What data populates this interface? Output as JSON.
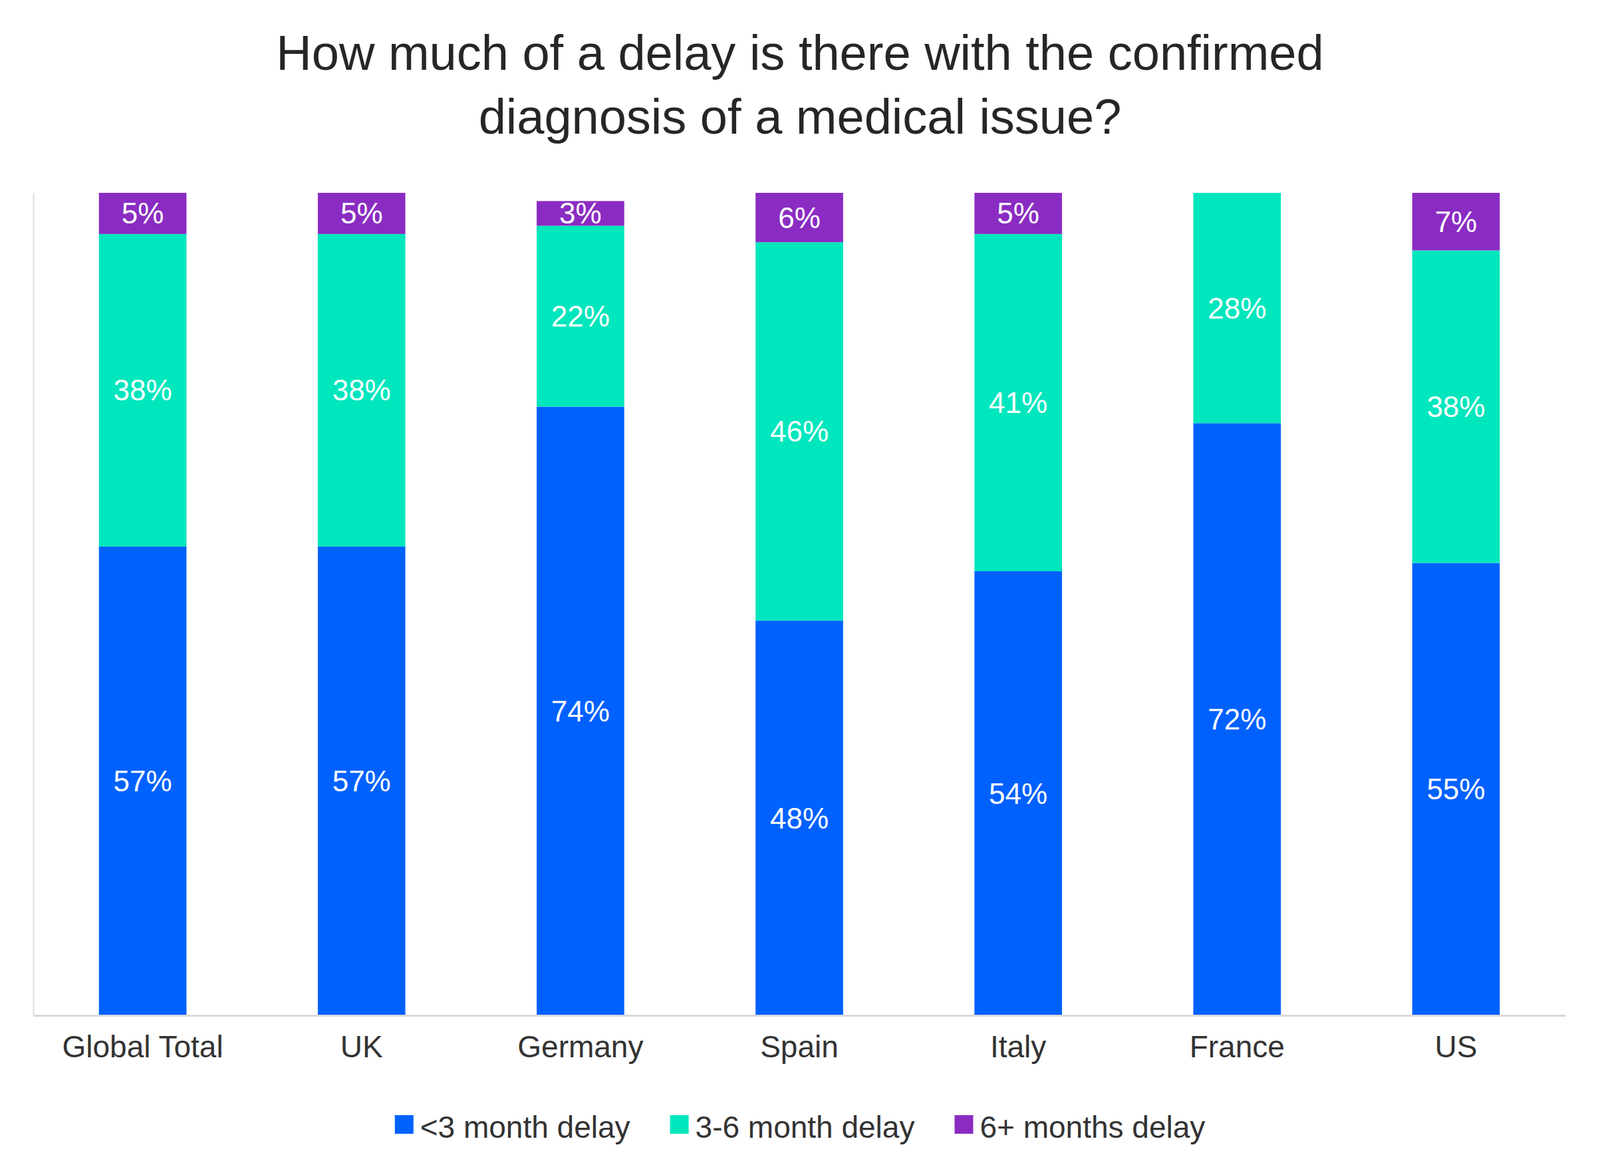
{
  "chart_data": {
    "type": "bar",
    "stacked": true,
    "data_labels": true,
    "tick_labels": "x",
    "title": "How much of a delay is there with the confirmed diagnosis of a medical issue?",
    "categories": [
      "Global Total",
      "UK",
      "Germany",
      "Spain",
      "Italy",
      "France",
      "US"
    ],
    "ylim": [
      0,
      100
    ],
    "series": [
      {
        "name": "<3 month delay",
        "color": "#0061ff",
        "values": [
          57,
          57,
          74,
          48,
          54,
          72,
          55
        ],
        "value_labels": [
          "57%",
          "57%",
          "74%",
          "48%",
          "54%",
          "72%",
          "55%"
        ]
      },
      {
        "name": "3-6 month delay",
        "color": "#00e6bd",
        "values": [
          38,
          38,
          22,
          46,
          41,
          28,
          38
        ],
        "value_labels": [
          "38%",
          "38%",
          "22%",
          "46%",
          "41%",
          "28%",
          "38%"
        ]
      },
      {
        "name": "6+ months delay",
        "color": "#8a2cc2",
        "values": [
          5,
          5,
          3,
          6,
          5,
          null,
          7
        ],
        "value_labels": [
          "5%",
          "5%",
          "3%",
          "6%",
          "5%",
          null,
          "7%"
        ]
      }
    ],
    "legend": "bottom"
  }
}
